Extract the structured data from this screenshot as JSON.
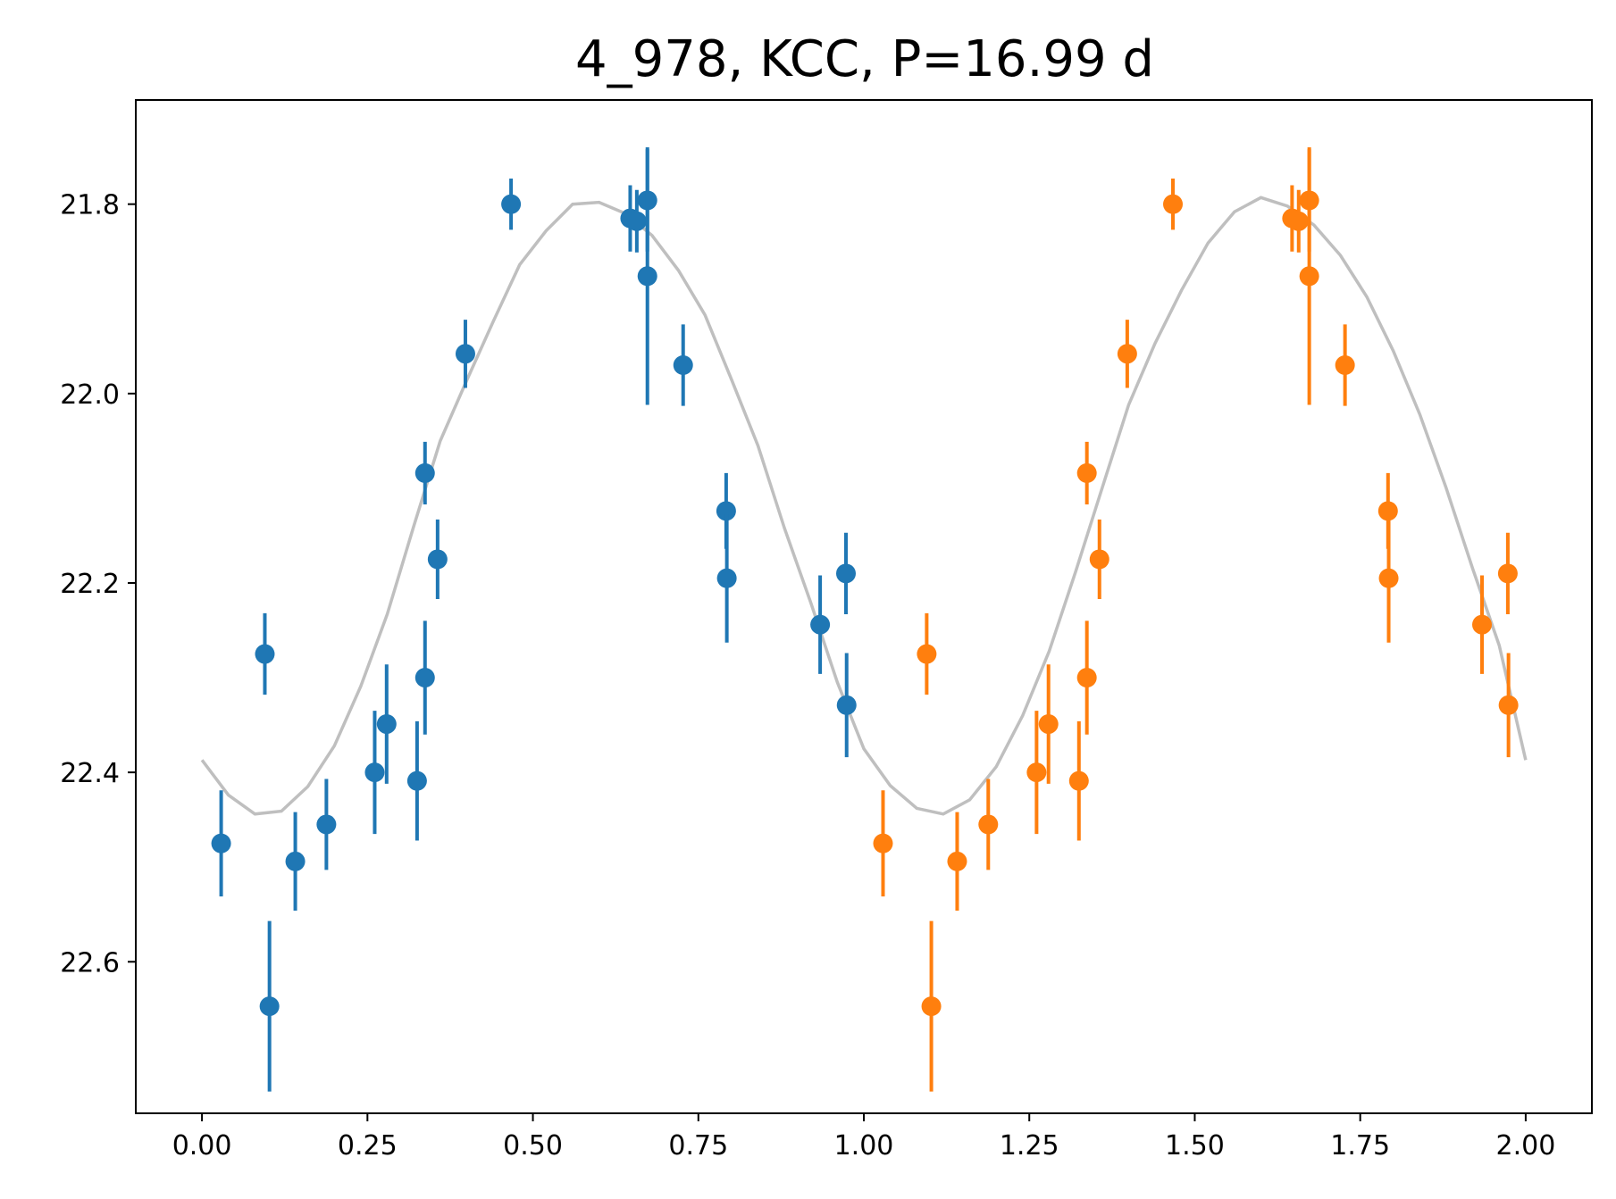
{
  "chart_data": {
    "type": "scatter",
    "title": "4_978, KCC, P=16.99 d",
    "xlabel": "",
    "ylabel": "",
    "xlim": [
      -0.1,
      2.1
    ],
    "ylim": [
      22.76,
      21.69
    ],
    "y_inverted": true,
    "grid": false,
    "x_ticks": [
      0.0,
      0.25,
      0.5,
      0.75,
      1.0,
      1.25,
      1.5,
      1.75,
      2.0
    ],
    "x_tick_labels": [
      "0.00",
      "0.25",
      "0.50",
      "0.75",
      "1.00",
      "1.25",
      "1.50",
      "1.75",
      "2.00"
    ],
    "y_ticks": [
      21.8,
      22.0,
      22.2,
      22.4,
      22.6
    ],
    "y_tick_labels": [
      "21.8",
      "22.0",
      "22.2",
      "22.4",
      "22.6"
    ],
    "series": [
      {
        "color": "#1f77b4",
        "points": [
          {
            "x": 0.029,
            "y": 22.475,
            "err": 0.056
          },
          {
            "x": 0.095,
            "y": 22.275,
            "err": 0.043
          },
          {
            "x": 0.102,
            "y": 22.647,
            "err": 0.09
          },
          {
            "x": 0.141,
            "y": 22.494,
            "err": 0.052
          },
          {
            "x": 0.188,
            "y": 22.455,
            "err": 0.048
          },
          {
            "x": 0.261,
            "y": 22.4,
            "err": 0.065
          },
          {
            "x": 0.279,
            "y": 22.349,
            "err": 0.063
          },
          {
            "x": 0.325,
            "y": 22.409,
            "err": 0.063
          },
          {
            "x": 0.337,
            "y": 22.084,
            "err": 0.033
          },
          {
            "x": 0.337,
            "y": 22.3,
            "err": 0.06
          },
          {
            "x": 0.356,
            "y": 22.175,
            "err": 0.042
          },
          {
            "x": 0.398,
            "y": 21.958,
            "err": 0.036
          },
          {
            "x": 0.467,
            "y": 21.8,
            "err": 0.027
          },
          {
            "x": 0.647,
            "y": 21.815,
            "err": 0.035
          },
          {
            "x": 0.657,
            "y": 21.818,
            "err": 0.033
          },
          {
            "x": 0.673,
            "y": 21.796,
            "err": 0.054
          },
          {
            "x": 0.673,
            "y": 21.876,
            "err": 0.136
          },
          {
            "x": 0.727,
            "y": 21.97,
            "err": 0.043
          },
          {
            "x": 0.792,
            "y": 22.124,
            "err": 0.04
          },
          {
            "x": 0.793,
            "y": 22.195,
            "err": 0.068
          },
          {
            "x": 0.934,
            "y": 22.244,
            "err": 0.052
          },
          {
            "x": 0.973,
            "y": 22.19,
            "err": 0.043
          },
          {
            "x": 0.974,
            "y": 22.329,
            "err": 0.055
          }
        ]
      },
      {
        "color": "#ff7f0e",
        "points": [
          {
            "x": 1.029,
            "y": 22.475,
            "err": 0.056
          },
          {
            "x": 1.095,
            "y": 22.275,
            "err": 0.043
          },
          {
            "x": 1.102,
            "y": 22.647,
            "err": 0.09
          },
          {
            "x": 1.141,
            "y": 22.494,
            "err": 0.052
          },
          {
            "x": 1.188,
            "y": 22.455,
            "err": 0.048
          },
          {
            "x": 1.261,
            "y": 22.4,
            "err": 0.065
          },
          {
            "x": 1.279,
            "y": 22.349,
            "err": 0.063
          },
          {
            "x": 1.325,
            "y": 22.409,
            "err": 0.063
          },
          {
            "x": 1.337,
            "y": 22.084,
            "err": 0.033
          },
          {
            "x": 1.337,
            "y": 22.3,
            "err": 0.06
          },
          {
            "x": 1.356,
            "y": 22.175,
            "err": 0.042
          },
          {
            "x": 1.398,
            "y": 21.958,
            "err": 0.036
          },
          {
            "x": 1.467,
            "y": 21.8,
            "err": 0.027
          },
          {
            "x": 1.647,
            "y": 21.815,
            "err": 0.035
          },
          {
            "x": 1.657,
            "y": 21.818,
            "err": 0.033
          },
          {
            "x": 1.673,
            "y": 21.796,
            "err": 0.054
          },
          {
            "x": 1.673,
            "y": 21.876,
            "err": 0.136
          },
          {
            "x": 1.727,
            "y": 21.97,
            "err": 0.043
          },
          {
            "x": 1.792,
            "y": 22.124,
            "err": 0.04
          },
          {
            "x": 1.793,
            "y": 22.195,
            "err": 0.068
          },
          {
            "x": 1.934,
            "y": 22.244,
            "err": 0.052
          },
          {
            "x": 1.973,
            "y": 22.19,
            "err": 0.043
          },
          {
            "x": 1.974,
            "y": 22.329,
            "err": 0.055
          }
        ]
      }
    ],
    "model_curve": {
      "color": "#bfbfbf",
      "x": [
        0.0,
        0.04,
        0.08,
        0.12,
        0.16,
        0.2,
        0.24,
        0.28,
        0.32,
        0.36,
        0.4,
        0.44,
        0.48,
        0.52,
        0.56,
        0.6,
        0.64,
        0.68,
        0.72,
        0.76,
        0.8,
        0.84,
        0.88,
        0.92,
        0.96,
        1.0,
        1.04,
        1.08,
        1.12,
        1.16,
        1.2,
        1.24,
        1.28,
        1.32,
        1.36,
        1.4,
        1.44,
        1.48,
        1.52,
        1.56,
        1.6,
        1.64,
        1.68,
        1.72,
        1.76,
        1.8,
        1.84,
        1.88,
        1.92,
        1.96,
        2.0
      ],
      "y": [
        22.387,
        22.424,
        22.444,
        22.441,
        22.415,
        22.372,
        22.309,
        22.233,
        22.14,
        22.05,
        21.986,
        21.924,
        21.864,
        21.828,
        21.8,
        21.798,
        21.81,
        21.833,
        21.87,
        21.917,
        21.985,
        22.055,
        22.142,
        22.221,
        22.305,
        22.375,
        22.414,
        22.438,
        22.444,
        22.429,
        22.394,
        22.34,
        22.272,
        22.188,
        22.1,
        22.012,
        21.947,
        21.891,
        21.841,
        21.808,
        21.793,
        21.802,
        21.822,
        21.854,
        21.898,
        21.955,
        22.022,
        22.1,
        22.185,
        22.266,
        22.387
      ]
    }
  }
}
